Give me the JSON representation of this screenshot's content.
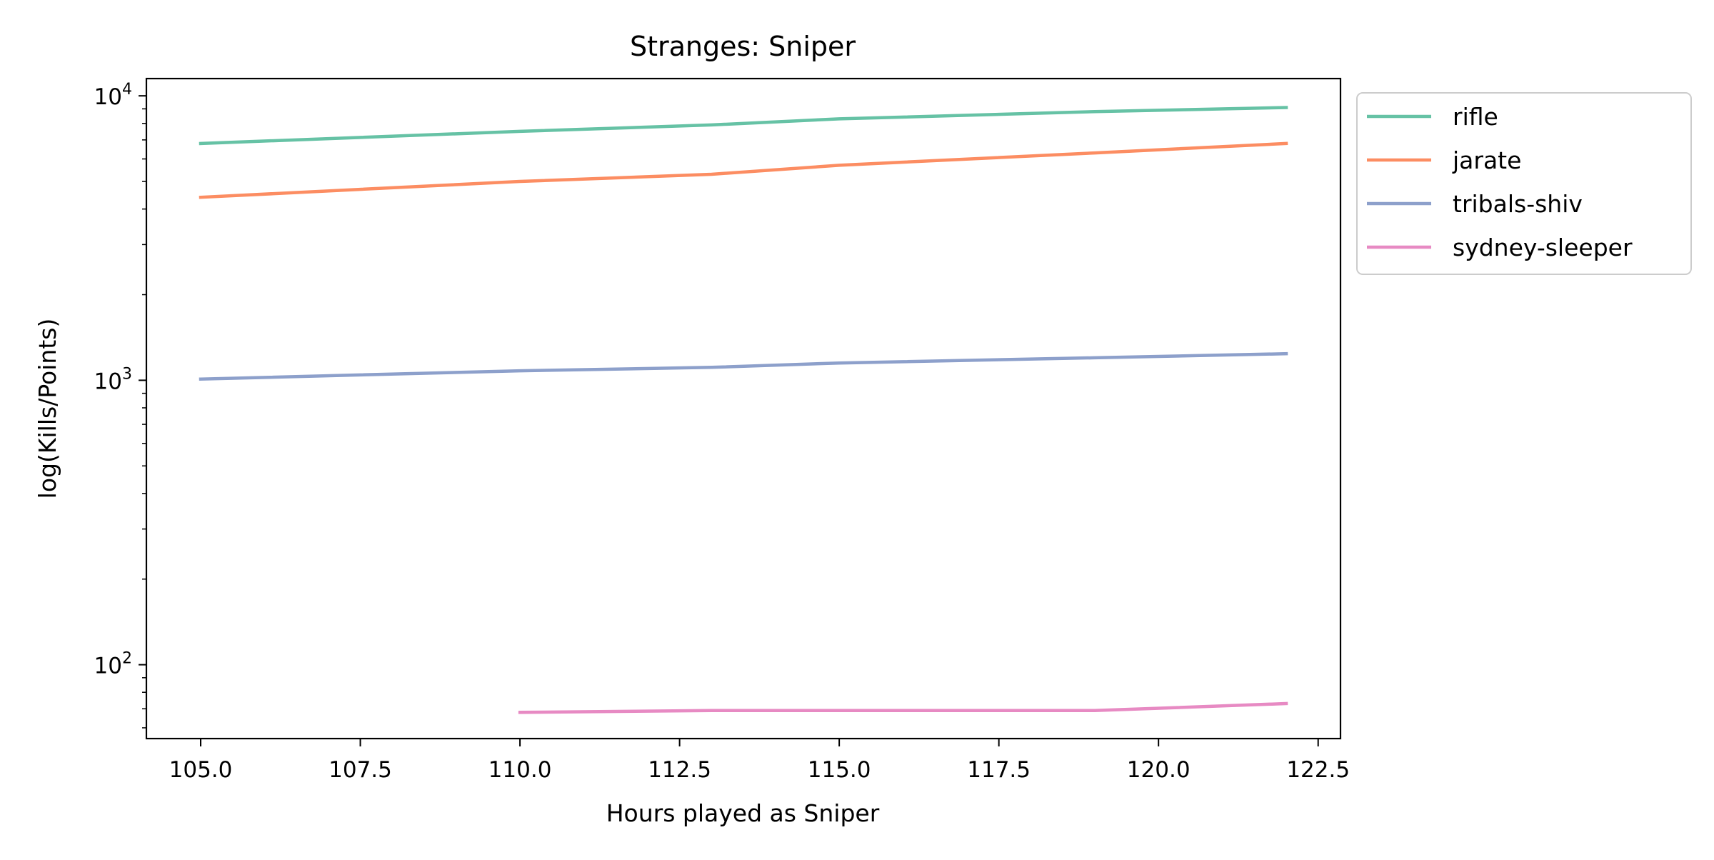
{
  "chart_data": {
    "type": "line",
    "title": "Stranges: Sniper",
    "xlabel": "Hours played as Sniper",
    "ylabel": "log(Kills/Points)",
    "yscale": "log",
    "xlim": [
      104.15,
      122.85
    ],
    "ylim": [
      55,
      11500
    ],
    "xticks": [
      "105.0",
      "107.5",
      "110.0",
      "112.5",
      "115.0",
      "117.5",
      "120.0",
      "122.5"
    ],
    "yticks": [
      {
        "base": "10",
        "exp": "2",
        "value": 100
      },
      {
        "base": "10",
        "exp": "3",
        "value": 1000
      },
      {
        "base": "10",
        "exp": "4",
        "value": 10000
      }
    ],
    "grid": false,
    "legend_position": "outside-top-right",
    "series": [
      {
        "name": "rifle",
        "color": "#66c2a5",
        "x": [
          105,
          110,
          113,
          115,
          119,
          122
        ],
        "y": [
          6800,
          7500,
          7900,
          8300,
          8800,
          9100
        ]
      },
      {
        "name": "jarate",
        "color": "#fc8d62",
        "x": [
          105,
          110,
          113,
          115,
          119,
          122
        ],
        "y": [
          4400,
          5000,
          5300,
          5700,
          6300,
          6800
        ]
      },
      {
        "name": "tribals-shiv",
        "color": "#8da0cb",
        "x": [
          105,
          110,
          113,
          115,
          119,
          122
        ],
        "y": [
          1010,
          1080,
          1110,
          1150,
          1200,
          1240
        ]
      },
      {
        "name": "sydney-sleeper",
        "color": "#e78ac3",
        "x": [
          110,
          113,
          115,
          119,
          122
        ],
        "y": [
          68,
          69,
          69,
          69,
          73
        ]
      }
    ]
  }
}
